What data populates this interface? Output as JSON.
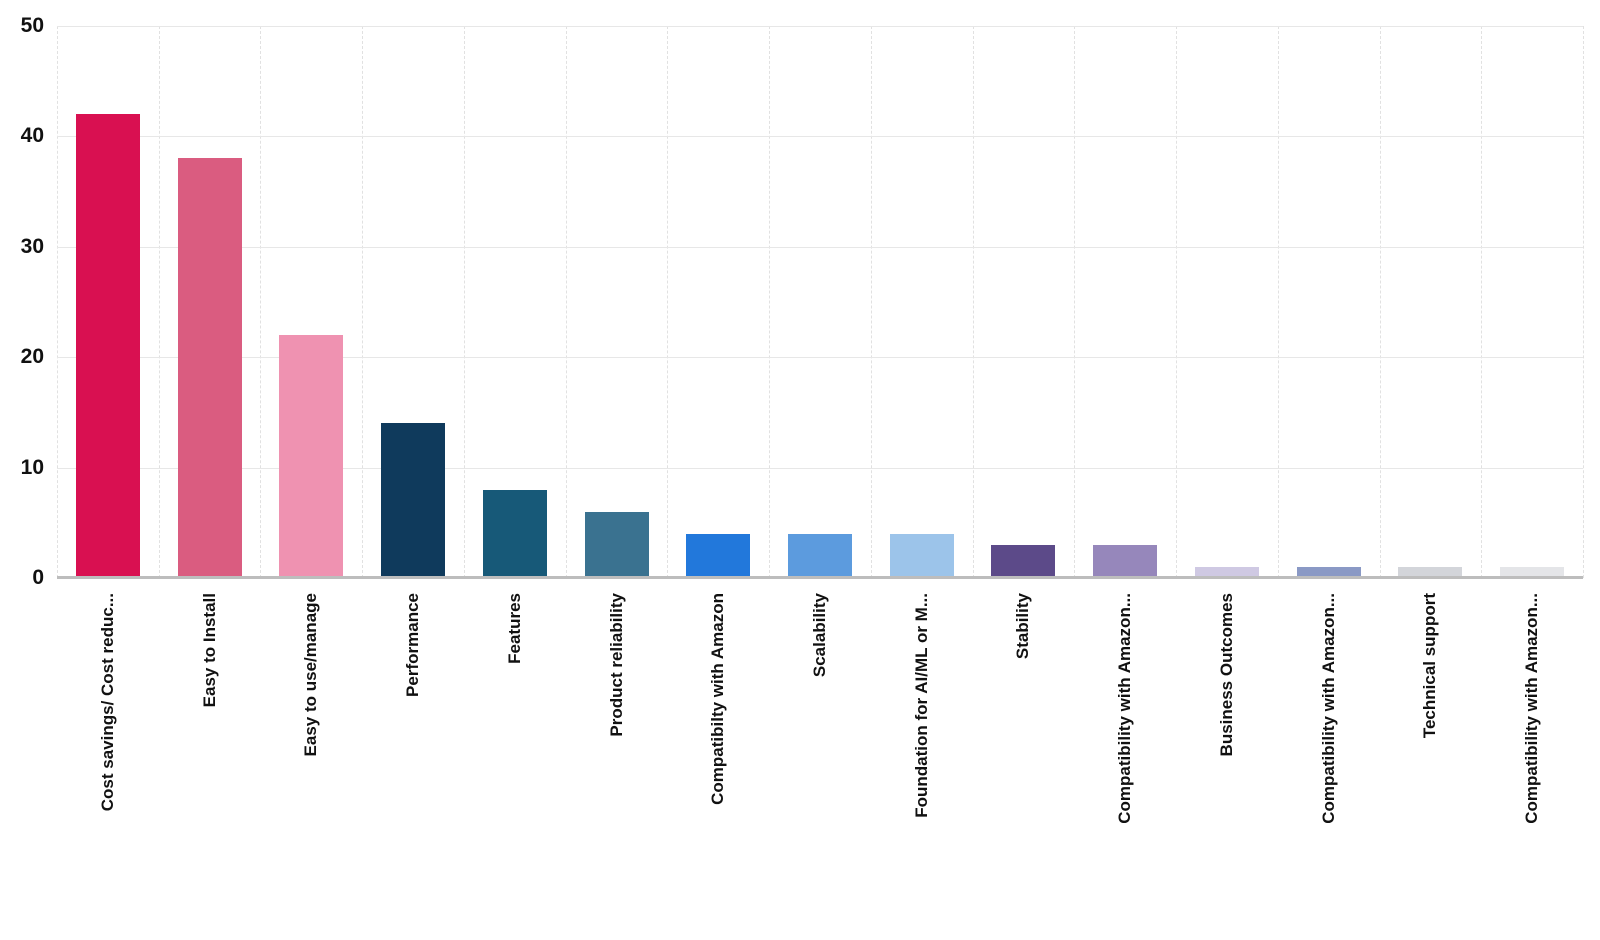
{
  "chart_data": {
    "type": "bar",
    "title": "",
    "xlabel": "",
    "ylabel": "",
    "legend": "none",
    "ylim": [
      0,
      50
    ],
    "yticks": [
      0,
      10,
      20,
      30,
      40,
      50
    ],
    "grid": {
      "horizontal": "solid",
      "vertical": "dashed"
    },
    "categories": [
      "Cost savings/ Cost reduc...",
      "Easy to Install",
      "Easy to use/manage",
      "Performance",
      "Features",
      "Product reliability",
      "Compatibilty with Amazon",
      "Scalability",
      "Foundation for AI/ML or M...",
      "Stability",
      "Compatibility with Amazon...",
      "Business Outcomes",
      "Compatibility with Amazon...",
      "Technical support",
      "Compatibility with Amazon..."
    ],
    "values": [
      42,
      38,
      22,
      14,
      8,
      6,
      4,
      4,
      4,
      3,
      3,
      1,
      1,
      1,
      1
    ],
    "bar_colors": [
      "#D91051",
      "#DA5C80",
      "#EF92B1",
      "#0F3A5C",
      "#175978",
      "#3A7290",
      "#2278DB",
      "#5C9BDE",
      "#9CC4EA",
      "#5C4A89",
      "#9687BB",
      "#CFC9E3",
      "#8A99C5",
      "#D3D5DA",
      "#E4E5E8"
    ]
  },
  "style": {
    "background": "#ffffff",
    "h_grid_color": "#e7e7e7",
    "v_grid_color": "#e1e1e1",
    "axis_line_color": "#bdbdbd",
    "label_color": "#111111"
  }
}
